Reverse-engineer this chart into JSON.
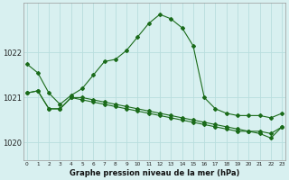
{
  "title": "Graphe pression niveau de la mer (hPa)",
  "background_color": "#d8f0f0",
  "grid_color": "#b8dede",
  "line_color": "#1a6b1a",
  "x_ticks": [
    0,
    1,
    2,
    3,
    4,
    5,
    6,
    7,
    8,
    9,
    10,
    11,
    12,
    13,
    14,
    15,
    16,
    17,
    18,
    19,
    20,
    21,
    22,
    23
  ],
  "y_ticks": [
    1020,
    1021,
    1022
  ],
  "ylim": [
    1019.6,
    1023.1
  ],
  "xlim": [
    -0.3,
    23.3
  ],
  "series1": [
    1021.75,
    1021.55,
    1021.1,
    1020.85,
    1021.05,
    1021.2,
    1021.5,
    1021.8,
    1021.85,
    1022.05,
    1022.35,
    1022.65,
    1022.85,
    1022.75,
    1022.55,
    1022.15,
    1021.0,
    1020.75,
    1020.65,
    1020.6,
    1020.6,
    1020.6,
    1020.55,
    1020.65
  ],
  "series2": [
    1021.1,
    1021.15,
    1020.75,
    1020.75,
    1021.0,
    1021.0,
    1020.95,
    1020.9,
    1020.85,
    1020.8,
    1020.75,
    1020.7,
    1020.65,
    1020.6,
    1020.55,
    1020.5,
    1020.45,
    1020.4,
    1020.35,
    1020.3,
    1020.25,
    1020.25,
    1020.2,
    1020.35
  ],
  "series3": [
    1021.1,
    1021.15,
    1020.75,
    1020.75,
    1021.0,
    1020.95,
    1020.9,
    1020.85,
    1020.8,
    1020.75,
    1020.7,
    1020.65,
    1020.6,
    1020.55,
    1020.5,
    1020.45,
    1020.4,
    1020.35,
    1020.3,
    1020.25,
    1020.25,
    1020.2,
    1020.1,
    1020.35
  ]
}
